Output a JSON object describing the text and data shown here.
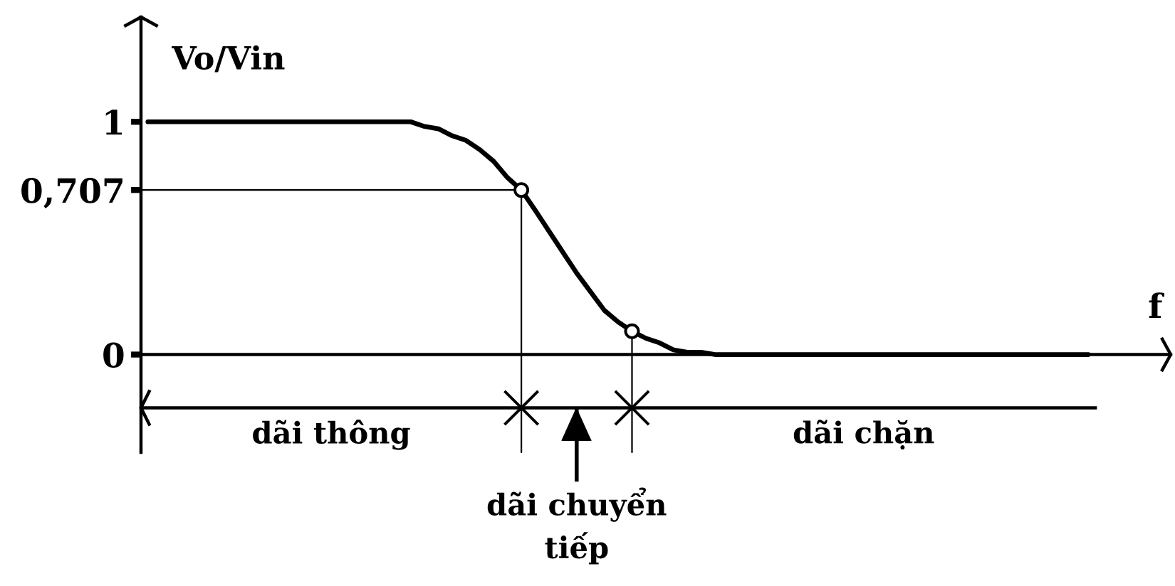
{
  "chart_data": {
    "type": "line",
    "xlabel": "f",
    "ylabel": "Vo/Vin",
    "categories": [
      null,
      null,
      null,
      null,
      null,
      null,
      null,
      null,
      null,
      null,
      null,
      null,
      null,
      null,
      null,
      null,
      null,
      null,
      null,
      null,
      null,
      null,
      null,
      null,
      null,
      null,
      null,
      null,
      null,
      null,
      null,
      null,
      null,
      null,
      null,
      null,
      null,
      null,
      null,
      null,
      null,
      null,
      null,
      null,
      null,
      null,
      null,
      null,
      null,
      null,
      null,
      null,
      null,
      null,
      null,
      null,
      null,
      null,
      null,
      null,
      null,
      null,
      null,
      null,
      null,
      null,
      null,
      null,
      null
    ],
    "series": [
      {
        "color": "#000000",
        "values": [
          1,
          1,
          1,
          1,
          1,
          1,
          1,
          1,
          1,
          1,
          1,
          1,
          1,
          1,
          1,
          1,
          1,
          1,
          1,
          1,
          0.98,
          0.97,
          0.94,
          0.92,
          0.88,
          0.83,
          0.76,
          0.707,
          0.62,
          0.53,
          0.44,
          0.35,
          0.27,
          0.19,
          0.14,
          0.1,
          0.07,
          0.05,
          0.02,
          0.01,
          0.01,
          0,
          0,
          0,
          0,
          0,
          0,
          0,
          0,
          0,
          0,
          0,
          0,
          0,
          0,
          0,
          0,
          0,
          0,
          0,
          0,
          0,
          0,
          0,
          0,
          0,
          0,
          0,
          0
        ]
      },
      {
        "type": "scatter",
        "color": "#000000",
        "marker": "circle",
        "values": [
          null,
          null,
          null,
          null,
          null,
          null,
          null,
          null,
          null,
          null,
          null,
          null,
          null,
          null,
          null,
          null,
          null,
          null,
          null,
          null,
          null,
          null,
          null,
          null,
          null,
          null,
          null,
          0.707,
          null,
          null,
          null,
          null,
          null,
          null,
          null,
          0.1,
          null,
          null,
          null,
          null,
          null,
          null,
          null,
          null,
          null,
          null,
          null,
          null,
          null,
          null,
          null,
          null,
          null,
          null,
          null,
          null,
          null,
          null,
          null,
          null,
          null,
          null,
          null,
          null,
          null,
          null,
          null,
          null,
          null
        ]
      }
    ],
    "ylim": [
      -0.42,
      1.45
    ],
    "yticks": [
      0,
      {
        "value": 0.707,
        "label": "0,707"
      },
      1
    ],
    "ref_lines": [
      {
        "axis": "y",
        "value": 0.707
      }
    ],
    "annotations": [
      "dãi thông",
      "dãi chuyển\ntiếp",
      "dãi chặn"
    ]
  }
}
